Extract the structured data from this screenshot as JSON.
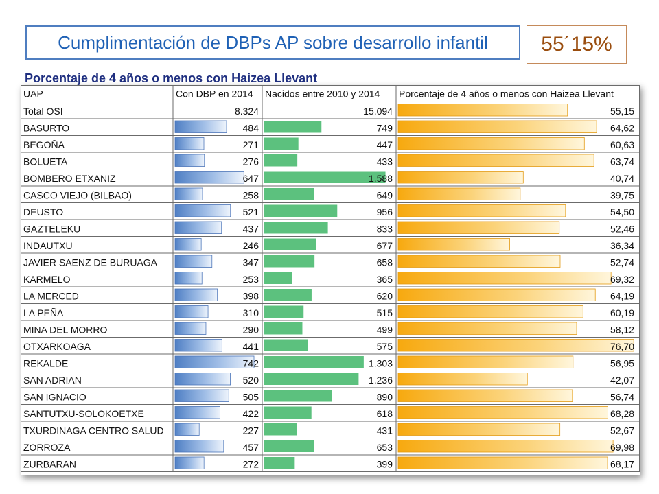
{
  "header": {
    "title": "Cumplimentación de DBPs AP sobre desarrollo infantil",
    "percentage": "55´15%"
  },
  "table": {
    "subtitle": "Porcentaje de 4 años o menos con Haizea Llevant",
    "columns": [
      "UAP",
      "Con DBP en 2014",
      "Nacidos entre 2010 y 2014",
      "Porcentaje de 4 años o menos con Haizea Llevant"
    ]
  },
  "colors": {
    "blue_bar": "#4f7fc4",
    "green_bar": "#5cc17e",
    "orange_bar": "#f7a90f",
    "grid": "#6b6b6b"
  },
  "chart_data": {
    "type": "table",
    "title": "Porcentaje de 4 años o menos con Haizea Llevant",
    "rows": [
      {
        "uap": "Total OSI",
        "dbp": "8.324",
        "nacidos": "15.094",
        "pct": "55,15",
        "dbp_value": 8324,
        "nacidos_value": 15094,
        "pct_value": 55.15,
        "bars": false
      },
      {
        "uap": "BASURTO",
        "dbp": "484",
        "nacidos": "749",
        "pct": "64,62",
        "dbp_value": 484,
        "nacidos_value": 749,
        "pct_value": 64.62,
        "bars": true
      },
      {
        "uap": "BEGOÑA",
        "dbp": "271",
        "nacidos": "447",
        "pct": "60,63",
        "dbp_value": 271,
        "nacidos_value": 447,
        "pct_value": 60.63,
        "bars": true
      },
      {
        "uap": "BOLUETA",
        "dbp": "276",
        "nacidos": "433",
        "pct": "63,74",
        "dbp_value": 276,
        "nacidos_value": 433,
        "pct_value": 63.74,
        "bars": true
      },
      {
        "uap": "BOMBERO ETXANIZ",
        "dbp": "647",
        "nacidos": "1.588",
        "pct": "40,74",
        "dbp_value": 647,
        "nacidos_value": 1588,
        "pct_value": 40.74,
        "bars": true
      },
      {
        "uap": "CASCO VIEJO (BILBAO)",
        "dbp": "258",
        "nacidos": "649",
        "pct": "39,75",
        "dbp_value": 258,
        "nacidos_value": 649,
        "pct_value": 39.75,
        "bars": true
      },
      {
        "uap": "DEUSTO",
        "dbp": "521",
        "nacidos": "956",
        "pct": "54,50",
        "dbp_value": 521,
        "nacidos_value": 956,
        "pct_value": 54.5,
        "bars": true
      },
      {
        "uap": "GAZTELEKU",
        "dbp": "437",
        "nacidos": "833",
        "pct": "52,46",
        "dbp_value": 437,
        "nacidos_value": 833,
        "pct_value": 52.46,
        "bars": true
      },
      {
        "uap": "INDAUTXU",
        "dbp": "246",
        "nacidos": "677",
        "pct": "36,34",
        "dbp_value": 246,
        "nacidos_value": 677,
        "pct_value": 36.34,
        "bars": true
      },
      {
        "uap": "JAVIER SAENZ DE BURUAGA",
        "dbp": "347",
        "nacidos": "658",
        "pct": "52,74",
        "dbp_value": 347,
        "nacidos_value": 658,
        "pct_value": 52.74,
        "bars": true
      },
      {
        "uap": "KARMELO",
        "dbp": "253",
        "nacidos": "365",
        "pct": "69,32",
        "dbp_value": 253,
        "nacidos_value": 365,
        "pct_value": 69.32,
        "bars": true
      },
      {
        "uap": "LA MERCED",
        "dbp": "398",
        "nacidos": "620",
        "pct": "64,19",
        "dbp_value": 398,
        "nacidos_value": 620,
        "pct_value": 64.19,
        "bars": true
      },
      {
        "uap": "LA PEÑA",
        "dbp": "310",
        "nacidos": "515",
        "pct": "60,19",
        "dbp_value": 310,
        "nacidos_value": 515,
        "pct_value": 60.19,
        "bars": true
      },
      {
        "uap": "MINA DEL MORRO",
        "dbp": "290",
        "nacidos": "499",
        "pct": "58,12",
        "dbp_value": 290,
        "nacidos_value": 499,
        "pct_value": 58.12,
        "bars": true
      },
      {
        "uap": "OTXARKOAGA",
        "dbp": "441",
        "nacidos": "575",
        "pct": "76,70",
        "dbp_value": 441,
        "nacidos_value": 575,
        "pct_value": 76.7,
        "bars": true
      },
      {
        "uap": "REKALDE",
        "dbp": "742",
        "nacidos": "1.303",
        "pct": "56,95",
        "dbp_value": 742,
        "nacidos_value": 1303,
        "pct_value": 56.95,
        "bars": true
      },
      {
        "uap": "SAN ADRIAN",
        "dbp": "520",
        "nacidos": "1.236",
        "pct": "42,07",
        "dbp_value": 520,
        "nacidos_value": 1236,
        "pct_value": 42.07,
        "bars": true
      },
      {
        "uap": "SAN IGNACIO",
        "dbp": "505",
        "nacidos": "890",
        "pct": "56,74",
        "dbp_value": 505,
        "nacidos_value": 890,
        "pct_value": 56.74,
        "bars": true
      },
      {
        "uap": "SANTUTXU-SOLOKOETXE",
        "dbp": "422",
        "nacidos": "618",
        "pct": "68,28",
        "dbp_value": 422,
        "nacidos_value": 618,
        "pct_value": 68.28,
        "bars": true
      },
      {
        "uap": "TXURDINAGA CENTRO SALUD",
        "dbp": "227",
        "nacidos": "431",
        "pct": "52,67",
        "dbp_value": 227,
        "nacidos_value": 431,
        "pct_value": 52.67,
        "bars": true
      },
      {
        "uap": "ZORROZA",
        "dbp": "457",
        "nacidos": "653",
        "pct": "69,98",
        "dbp_value": 457,
        "nacidos_value": 653,
        "pct_value": 69.98,
        "bars": true
      },
      {
        "uap": "ZURBARAN",
        "dbp": "272",
        "nacidos": "399",
        "pct": "68,17",
        "dbp_value": 272,
        "nacidos_value": 399,
        "pct_value": 68.17,
        "bars": true
      }
    ]
  }
}
